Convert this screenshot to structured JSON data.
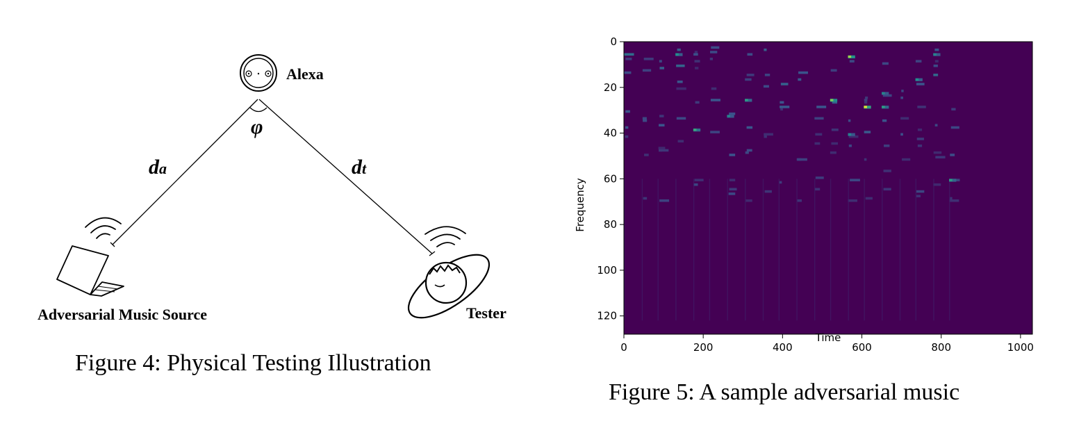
{
  "figure4": {
    "caption": "Figure 4: Physical Testing Illustration",
    "labels": {
      "alexa": "Alexa",
      "angle": "φ",
      "da_main": "d",
      "da_sub": "a",
      "dt_main": "d",
      "dt_sub": "t",
      "source": "Adversarial Music Source",
      "tester": "Tester"
    },
    "icons": [
      "echo-device-icon",
      "laptop-icon",
      "person-icon",
      "sound-waves-icon"
    ]
  },
  "figure5": {
    "caption": "Figure 5: A sample adversarial music",
    "chart_data": {
      "type": "heatmap",
      "title": "",
      "xlabel": "Time",
      "ylabel": "Frequency",
      "xlim": [
        0,
        1030
      ],
      "ylim": [
        128,
        0
      ],
      "xticks": [
        0,
        200,
        400,
        600,
        800,
        1000
      ],
      "yticks": [
        0,
        20,
        40,
        60,
        80,
        100,
        120
      ],
      "colormap": "viridis",
      "background_color": "#440154",
      "onsets": [
        0,
        45,
        85,
        130,
        175,
        215,
        260,
        305,
        350,
        390,
        435,
        480,
        520,
        565,
        605,
        650,
        695,
        735,
        780,
        820
      ],
      "active_time_range": [
        0,
        840
      ],
      "hotspots": [
        {
          "time": 565,
          "freq": 6,
          "intensity": 0.85
        },
        {
          "time": 520,
          "freq": 25,
          "intensity": 0.8
        },
        {
          "time": 605,
          "freq": 28,
          "intensity": 0.95
        },
        {
          "time": 175,
          "freq": 38,
          "intensity": 0.6
        },
        {
          "time": 130,
          "freq": 5,
          "intensity": 0.5
        },
        {
          "time": 305,
          "freq": 25,
          "intensity": 0.55
        },
        {
          "time": 650,
          "freq": 28,
          "intensity": 0.55
        },
        {
          "time": 820,
          "freq": 60,
          "intensity": 0.55
        },
        {
          "time": 735,
          "freq": 16,
          "intensity": 0.5
        },
        {
          "time": 260,
          "freq": 32,
          "intensity": 0.45
        },
        {
          "time": 565,
          "freq": 40,
          "intensity": 0.45
        },
        {
          "time": 650,
          "freq": 22,
          "intensity": 0.45
        },
        {
          "time": 780,
          "freq": 5,
          "intensity": 0.45
        }
      ]
    }
  }
}
